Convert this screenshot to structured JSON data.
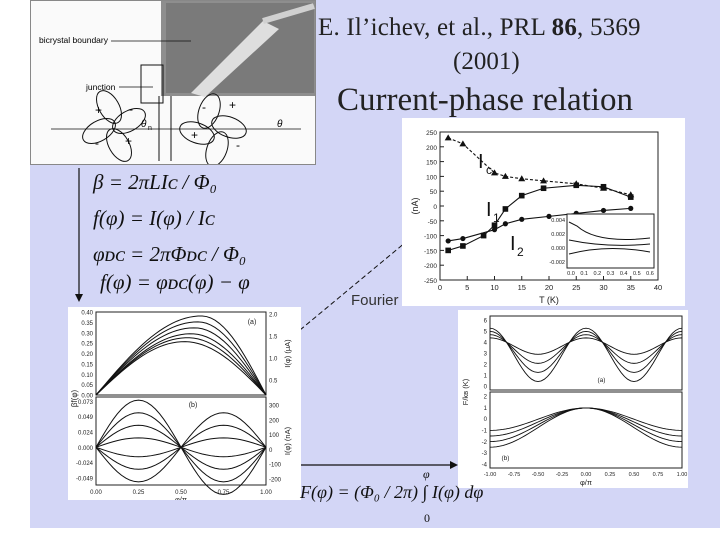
{
  "header": {
    "citation_authors": "E. Il’ichev, et al., PRL ",
    "citation_volume": "86",
    "citation_pages": ", 5369",
    "citation_year": "(2001)",
    "title": "Current-phase relation"
  },
  "micrograph": {
    "label_boundary": "bicrystal boundary",
    "label_junction": "junction",
    "theta_left": "θ",
    "theta_sub_left": "n",
    "theta_right": "θ"
  },
  "equations": {
    "beta": "β = 2πLIᴄ / Φ₀",
    "f_phi": "f(φ) = I(φ) / Iᴄ",
    "phi_dc": "φᴅᴄ = 2πΦᴅᴄ / Φ₀",
    "f_phi2": "f(φ) = φᴅᴄ(φ) − φ",
    "energy": "F(φ) = (Φ₀ / 2π) ∫ I(φ) dφ",
    "int_upper": "φ",
    "int_lower": "0"
  },
  "fourier_label": "Fourier",
  "chart_data": [
    {
      "type": "line",
      "title": "",
      "xlabel": "T (K)",
      "ylabel": "(nA)",
      "xlim": [
        0,
        40
      ],
      "ylim": [
        -250,
        250
      ],
      "x_ticks": [
        "0",
        "5",
        "10",
        "15",
        "20",
        "25",
        "30",
        "35",
        "40"
      ],
      "y_ticks": [
        "250",
        "200",
        "150",
        "100",
        "50",
        "0",
        "-50",
        "-100",
        "-150",
        "-200",
        "-250"
      ],
      "curve_labels": {
        "ic": "I",
        "ic_sub": "c",
        "i1": "I",
        "i1_sub": "1",
        "i2": "I",
        "i2_sub": "2"
      },
      "series": [
        {
          "name": "Ic",
          "x": [
            1.5,
            4.2,
            10,
            12,
            15,
            19,
            25,
            30,
            35
          ],
          "y": [
            230,
            210,
            112,
            100,
            92,
            85,
            75,
            60,
            38
          ]
        },
        {
          "name": "I1",
          "x": [
            1.5,
            4.2,
            8,
            10,
            12,
            15,
            19,
            25,
            30,
            35
          ],
          "y": [
            -150,
            -135,
            -100,
            -65,
            -10,
            35,
            60,
            70,
            65,
            30
          ]
        },
        {
          "name": "I2",
          "x": [
            1.5,
            4.2,
            10,
            12,
            15,
            20,
            25,
            30,
            35
          ],
          "y": [
            -118,
            -110,
            -80,
            -60,
            -45,
            -35,
            -25,
            -15,
            -8
          ]
        }
      ],
      "inset": {
        "y_ticks": [
          "0.004",
          "0.002",
          "0.000",
          "-0.002"
        ],
        "x_ticks": [
          "0.0",
          "0.1",
          "0.2",
          "0.3",
          "0.4",
          "0.5",
          "0.6"
        ]
      }
    },
    {
      "type": "line",
      "panel": "(a)",
      "xlabel": "φ/π",
      "ylabel_left": "βf(φ)",
      "ylabel_right": "I(φ) (μA)",
      "y_ticks_left": [
        "0.40",
        "0.35",
        "0.30",
        "0.25",
        "0.20",
        "0.15",
        "0.10",
        "0.05",
        "0.00"
      ],
      "y_ticks_right": [
        "2.0",
        "1.5",
        "1.0",
        "0.5"
      ],
      "xlim": [
        0,
        1
      ],
      "ylim": [
        0,
        0.42
      ],
      "series": [
        {
          "peak_x": 0.62,
          "peak_y": 0.4
        },
        {
          "peak_x": 0.6,
          "peak_y": 0.37
        },
        {
          "peak_x": 0.58,
          "peak_y": 0.34
        },
        {
          "peak_x": 0.56,
          "peak_y": 0.31
        },
        {
          "peak_x": 0.54,
          "peak_y": 0.29
        },
        {
          "peak_x": 0.52,
          "peak_y": 0.27
        }
      ]
    },
    {
      "type": "line",
      "panel": "(b)",
      "xlabel": "φ/π",
      "ylabel_right": "I(φ) (nA)",
      "x_ticks": [
        "0.00",
        "0.25",
        "0.50",
        "0.75",
        "1.00"
      ],
      "y_ticks_left": [
        "0.073",
        "0.049",
        "0.024",
        "0.000",
        "-0.024",
        "-0.049"
      ],
      "y_ticks_right": [
        "300",
        "200",
        "100",
        "0",
        "-100",
        "-200"
      ],
      "xlim": [
        0,
        1
      ],
      "ylim": [
        -0.06,
        0.08
      ],
      "series": [
        {
          "amp": 0.075
        },
        {
          "amp": 0.055
        },
        {
          "amp": 0.035
        },
        {
          "amp": 0.015
        },
        {
          "amp": -0.015
        },
        {
          "amp": -0.035
        },
        {
          "amp": -0.055
        }
      ]
    },
    {
      "type": "line",
      "panel_a": "(a)",
      "panel_b": "(b)",
      "xlabel": "φ/π",
      "ylabel": "F/kʙ (K)",
      "x_ticks": [
        "-1.00",
        "-0.75",
        "-0.50",
        "-0.25",
        "0.00",
        "0.25",
        "0.50",
        "0.75",
        "1.00"
      ],
      "y_ticks_a": [
        "6",
        "5",
        "4",
        "3",
        "2",
        "1",
        "0"
      ],
      "y_ticks_b": [
        "2",
        "1",
        "0",
        "-1",
        "-2",
        "-3",
        "-4"
      ],
      "series_a": [
        {
          "depth": 0.4
        },
        {
          "depth": 0.7
        },
        {
          "depth": 1.0
        },
        {
          "depth": 1.3
        }
      ],
      "series_b": [
        {
          "depth": 1.2
        },
        {
          "depth": 1.5
        },
        {
          "depth": 1.8
        },
        {
          "depth": 2.1
        }
      ]
    }
  ]
}
